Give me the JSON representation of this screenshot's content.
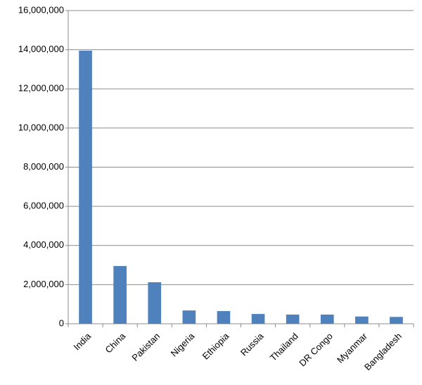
{
  "chart_data": {
    "type": "bar",
    "categories": [
      "India",
      "China",
      "Pakistan",
      "Nigeria",
      "Ethiopia",
      "Russia",
      "Thailand",
      "DR Congo",
      "Myanmar",
      "Bangladesh"
    ],
    "values": [
      13950000,
      2950000,
      2120000,
      680000,
      650000,
      500000,
      470000,
      470000,
      370000,
      350000
    ],
    "color": "#4f81bd",
    "ylim": [
      0,
      16000000
    ],
    "yticks": [
      0,
      {
        "value": 2000000,
        "label": "2,000,000"
      },
      {
        "value": 4000000,
        "label": "4,000,000"
      },
      {
        "value": 6000000,
        "label": "6,000,000"
      },
      {
        "value": 8000000,
        "label": "8,000,000"
      },
      {
        "value": 10000000,
        "label": "10,000,000"
      },
      {
        "value": 12000000,
        "label": "12,000,000"
      },
      {
        "value": 14000000,
        "label": "14,000,000"
      },
      {
        "value": 16000000,
        "label": "16,000,000"
      }
    ],
    "grid": true
  }
}
